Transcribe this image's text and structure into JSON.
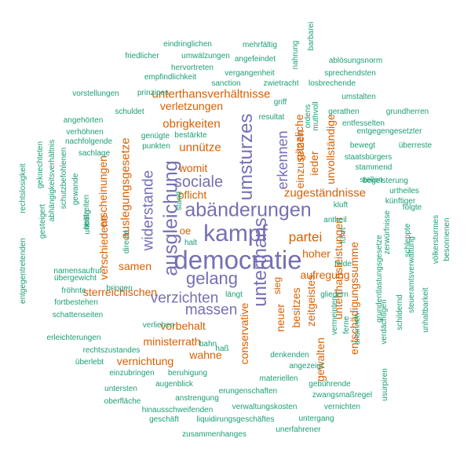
{
  "palette": {
    "t1": "#7570b3",
    "t2": "#d95f02",
    "t3": "#1b9e77"
  },
  "words": [
    {
      "text": "democratie",
      "tier": "t1"
    },
    {
      "text": "kampf",
      "tier": "t1"
    },
    {
      "text": "abänderungen",
      "tier": "t1"
    },
    {
      "text": "ausgleichung",
      "tier": "t1"
    },
    {
      "text": "umsturzes",
      "tier": "t1"
    },
    {
      "text": "unterthans",
      "tier": "t1"
    },
    {
      "text": "gelang",
      "tier": "t1"
    },
    {
      "text": "sociale",
      "tier": "t1"
    },
    {
      "text": "massen",
      "tier": "t1"
    },
    {
      "text": "verzichten",
      "tier": "t1"
    },
    {
      "text": "widerstande",
      "tier": "t1"
    },
    {
      "text": "erkennen",
      "tier": "t1"
    },
    {
      "text": "partei",
      "tier": "t2"
    },
    {
      "text": "zugeständnisse",
      "tier": "t2"
    },
    {
      "text": "unterthansverhältnisse",
      "tier": "t2"
    },
    {
      "text": "verletzungen",
      "tier": "t2"
    },
    {
      "text": "obrigkeiten",
      "tier": "t2"
    },
    {
      "text": "unnütze",
      "tier": "t2"
    },
    {
      "text": "womit",
      "tier": "t2"
    },
    {
      "text": "pflicht",
      "tier": "t2"
    },
    {
      "text": "oe",
      "tier": "t2"
    },
    {
      "text": "auslegungsgesetze",
      "tier": "t2"
    },
    {
      "text": "erscheinungen",
      "tier": "t2"
    },
    {
      "text": "verschiedene",
      "tier": "t2"
    },
    {
      "text": "samen",
      "tier": "t2"
    },
    {
      "text": "sterreichischen",
      "tier": "t2"
    },
    {
      "text": "vorbehalt",
      "tier": "t2"
    },
    {
      "text": "ministerrath",
      "tier": "t2"
    },
    {
      "text": "wahne",
      "tier": "t2"
    },
    {
      "text": "vernichtung",
      "tier": "t2"
    },
    {
      "text": "conservative",
      "tier": "t2"
    },
    {
      "text": "neuer",
      "tier": "t2"
    },
    {
      "text": "besitzes",
      "tier": "t2"
    },
    {
      "text": "zeitgeistes",
      "tier": "t2"
    },
    {
      "text": "sieg",
      "tier": "t2"
    },
    {
      "text": "hoher",
      "tier": "t2"
    },
    {
      "text": "aufregung",
      "tier": "t2"
    },
    {
      "text": "gänzliche",
      "tier": "t2"
    },
    {
      "text": "einzusetzen",
      "tier": "t2"
    },
    {
      "text": "ieder",
      "tier": "t2"
    },
    {
      "text": "unvollständige",
      "tier": "t2"
    },
    {
      "text": "unterthansleistungen",
      "tier": "t2"
    },
    {
      "text": "entschädigungssumme",
      "tier": "t2"
    },
    {
      "text": "gewalten",
      "tier": "t2"
    },
    {
      "text": "eindringlichen",
      "tier": "t3"
    },
    {
      "text": "mehrfältig",
      "tier": "t3"
    },
    {
      "text": "barbarei",
      "tier": "t3"
    },
    {
      "text": "friedlicher",
      "tier": "t3"
    },
    {
      "text": "umwälzungen",
      "tier": "t3"
    },
    {
      "text": "angefeindet",
      "tier": "t3"
    },
    {
      "text": "nahrung",
      "tier": "t3"
    },
    {
      "text": "ablösungsnorm",
      "tier": "t3"
    },
    {
      "text": "hervortreten",
      "tier": "t3"
    },
    {
      "text": "vergangenheit",
      "tier": "t3"
    },
    {
      "text": "sprechendsten",
      "tier": "t3"
    },
    {
      "text": "empfindlichkeit",
      "tier": "t3"
    },
    {
      "text": "sanction",
      "tier": "t3"
    },
    {
      "text": "zwietracht",
      "tier": "t3"
    },
    {
      "text": "losbrechende",
      "tier": "t3"
    },
    {
      "text": "vorstellungen",
      "tier": "t3"
    },
    {
      "text": "prinzipes",
      "tier": "t3"
    },
    {
      "text": "umstalten",
      "tier": "t3"
    },
    {
      "text": "griff",
      "tier": "t3"
    },
    {
      "text": "schuldet",
      "tier": "t3"
    },
    {
      "text": "gerathen",
      "tier": "t3"
    },
    {
      "text": "grundherren",
      "tier": "t3"
    },
    {
      "text": "resultat",
      "tier": "t3"
    },
    {
      "text": "ordens",
      "tier": "t3"
    },
    {
      "text": "muthvoll",
      "tier": "t3"
    },
    {
      "text": "angehörten",
      "tier": "t3"
    },
    {
      "text": "entfesselten",
      "tier": "t3"
    },
    {
      "text": "verhöhnen",
      "tier": "t3"
    },
    {
      "text": "genügte",
      "tier": "t3"
    },
    {
      "text": "bestärkte",
      "tier": "t3"
    },
    {
      "text": "entgegengesetzter",
      "tier": "t3"
    },
    {
      "text": "nachfolgende",
      "tier": "t3"
    },
    {
      "text": "punkten",
      "tier": "t3"
    },
    {
      "text": "bewegt",
      "tier": "t3"
    },
    {
      "text": "überreste",
      "tier": "t3"
    },
    {
      "text": "geknechteten",
      "tier": "t3"
    },
    {
      "text": "sachlage",
      "tier": "t3"
    },
    {
      "text": "staatsbürgers",
      "tier": "t3"
    },
    {
      "text": "abhängigkeitsverhältnis",
      "tier": "t3"
    },
    {
      "text": "schutzbefohlenen",
      "tier": "t3"
    },
    {
      "text": "stammend",
      "tier": "t3"
    },
    {
      "text": "rechtslosigkeit",
      "tier": "t3"
    },
    {
      "text": "stellen",
      "tier": "t3"
    },
    {
      "text": "begeisterung",
      "tier": "t3"
    },
    {
      "text": "gewande",
      "tier": "t3"
    },
    {
      "text": "urtheiles",
      "tier": "t3"
    },
    {
      "text": "künftiger",
      "tier": "t3"
    },
    {
      "text": "stand",
      "tier": "t3"
    },
    {
      "text": "kluft",
      "tier": "t3"
    },
    {
      "text": "folgte",
      "tier": "t3"
    },
    {
      "text": "bestreiten",
      "tier": "t3"
    },
    {
      "text": "gesteigert",
      "tier": "t3"
    },
    {
      "text": "unbillig",
      "tier": "t3"
    },
    {
      "text": "entgegentretenden",
      "tier": "t3"
    },
    {
      "text": "halt",
      "tier": "t3"
    },
    {
      "text": "antheil",
      "tier": "t3"
    },
    {
      "text": "zerwürfnisse",
      "tier": "t3"
    },
    {
      "text": "führt",
      "tier": "t3"
    },
    {
      "text": "schleppte",
      "tier": "t3"
    },
    {
      "text": "völkersturmes",
      "tier": "t3"
    },
    {
      "text": "besonnenen",
      "tier": "t3"
    },
    {
      "text": "namensaufruf",
      "tier": "t3"
    },
    {
      "text": "directe",
      "tier": "t3"
    },
    {
      "text": "übergewicht",
      "tier": "t3"
    },
    {
      "text": "felde",
      "tier": "t3"
    },
    {
      "text": "grundentlastungsgesetze",
      "tier": "t3"
    },
    {
      "text": "steueramtsverwaltung",
      "tier": "t3"
    },
    {
      "text": "fröhnte",
      "tier": "t3"
    },
    {
      "text": "bringen",
      "tier": "t3"
    },
    {
      "text": "längt",
      "tier": "t3"
    },
    {
      "text": "gliedern",
      "tier": "t3"
    },
    {
      "text": "fortbestehen",
      "tier": "t3"
    },
    {
      "text": "schattenseiten",
      "tier": "t3"
    },
    {
      "text": "verliehen",
      "tier": "t3"
    },
    {
      "text": "erleichterungen",
      "tier": "t3"
    },
    {
      "text": "haß",
      "tier": "t3"
    },
    {
      "text": "rechtszustandes",
      "tier": "t3"
    },
    {
      "text": "bahn",
      "tier": "t3"
    },
    {
      "text": "vermeinten",
      "tier": "t3"
    },
    {
      "text": "ferne",
      "tier": "t3"
    },
    {
      "text": "ansinnen",
      "tier": "t3"
    },
    {
      "text": "verdächtigen",
      "tier": "t3"
    },
    {
      "text": "schildernd",
      "tier": "t3"
    },
    {
      "text": "unhaltbarkeit",
      "tier": "t3"
    },
    {
      "text": "überlebt",
      "tier": "t3"
    },
    {
      "text": "denkenden",
      "tier": "t3"
    },
    {
      "text": "angezeigt",
      "tier": "t3"
    },
    {
      "text": "einzubringen",
      "tier": "t3"
    },
    {
      "text": "beruhigung",
      "tier": "t3"
    },
    {
      "text": "augenblick",
      "tier": "t3"
    },
    {
      "text": "materiellen",
      "tier": "t3"
    },
    {
      "text": "gebührende",
      "tier": "t3"
    },
    {
      "text": "usurpiren",
      "tier": "t3"
    },
    {
      "text": "untersten",
      "tier": "t3"
    },
    {
      "text": "erungenschaften",
      "tier": "t3"
    },
    {
      "text": "oberfläche",
      "tier": "t3"
    },
    {
      "text": "anstrengung",
      "tier": "t3"
    },
    {
      "text": "zwangsmaßregel",
      "tier": "t3"
    },
    {
      "text": "hinausschweifenden",
      "tier": "t3"
    },
    {
      "text": "verwaltungskosten",
      "tier": "t3"
    },
    {
      "text": "vernichten",
      "tier": "t3"
    },
    {
      "text": "geschäft",
      "tier": "t3"
    },
    {
      "text": "liquidirungsgeschäftes",
      "tier": "t3"
    },
    {
      "text": "untergang",
      "tier": "t3"
    },
    {
      "text": "zusammenhanges",
      "tier": "t3"
    },
    {
      "text": "unerfahrener",
      "tier": "t3"
    }
  ]
}
